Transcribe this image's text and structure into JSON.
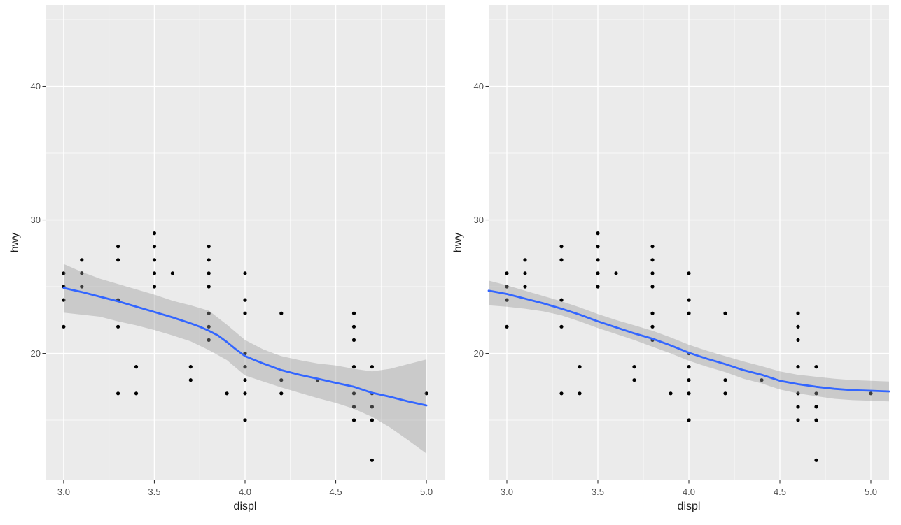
{
  "figure": {
    "kind": "side-by-side ggplot scatter plots with loess smooth and confidence ribbon",
    "background": "#FFFFFF",
    "panel_background": "#EBEBEB",
    "grid_color": "#FFFFFF",
    "point_color": "#000000",
    "smooth_line_color": "#3366FF",
    "ribbon_color": "#999999",
    "ribbon_opacity": 0.4,
    "tick_label_color": "#4D4D4D",
    "axis_title_color": "#1A1A1A",
    "tick_mark_color": "#333333"
  },
  "chart_data": [
    {
      "id": "left",
      "type": "scatter",
      "title": "",
      "xlabel": "displ",
      "ylabel": "hwy",
      "xlim": [
        2.9,
        5.1
      ],
      "ylim": [
        10.5,
        46.1
      ],
      "grid": true,
      "legend": "none",
      "x_tick_values": [
        3.0,
        3.5,
        4.0,
        4.5,
        5.0
      ],
      "x_tick_labels": [
        "3.0",
        "3.5",
        "4.0",
        "4.5",
        "5.0"
      ],
      "x_minor_ticks": [
        3.25,
        3.75,
        4.25,
        4.75
      ],
      "y_tick_values": [
        20,
        30,
        40
      ],
      "y_tick_labels": [
        "20",
        "30",
        "40"
      ],
      "y_minor_ticks": [
        15,
        25,
        35,
        45
      ],
      "points": [
        [
          3.0,
          26
        ],
        [
          3.0,
          25
        ],
        [
          3.0,
          24
        ],
        [
          3.0,
          22
        ],
        [
          3.1,
          27
        ],
        [
          3.1,
          26
        ],
        [
          3.1,
          25
        ],
        [
          3.3,
          28
        ],
        [
          3.3,
          27
        ],
        [
          3.3,
          24
        ],
        [
          3.3,
          22
        ],
        [
          3.3,
          17
        ],
        [
          3.4,
          19
        ],
        [
          3.4,
          17
        ],
        [
          3.5,
          29
        ],
        [
          3.5,
          28
        ],
        [
          3.5,
          27
        ],
        [
          3.5,
          26
        ],
        [
          3.5,
          25
        ],
        [
          3.6,
          26
        ],
        [
          3.7,
          19
        ],
        [
          3.7,
          18
        ],
        [
          3.8,
          28
        ],
        [
          3.8,
          27
        ],
        [
          3.8,
          26
        ],
        [
          3.8,
          25
        ],
        [
          3.8,
          23
        ],
        [
          3.8,
          22
        ],
        [
          3.8,
          21
        ],
        [
          3.9,
          17
        ],
        [
          4.0,
          26
        ],
        [
          4.0,
          24
        ],
        [
          4.0,
          23
        ],
        [
          4.0,
          20
        ],
        [
          4.0,
          19
        ],
        [
          4.0,
          18
        ],
        [
          4.0,
          17
        ],
        [
          4.0,
          15
        ],
        [
          4.2,
          23
        ],
        [
          4.2,
          18
        ],
        [
          4.2,
          17
        ],
        [
          4.4,
          18
        ],
        [
          4.6,
          23
        ],
        [
          4.6,
          22
        ],
        [
          4.6,
          21
        ],
        [
          4.6,
          19
        ],
        [
          4.6,
          17
        ],
        [
          4.6,
          16
        ],
        [
          4.6,
          15
        ],
        [
          4.7,
          19
        ],
        [
          4.7,
          17
        ],
        [
          4.7,
          16
        ],
        [
          4.7,
          15
        ],
        [
          4.7,
          12
        ],
        [
          5.0,
          17
        ]
      ],
      "smooth_line": [
        [
          3.0,
          24.9
        ],
        [
          3.1,
          24.6
        ],
        [
          3.2,
          24.25
        ],
        [
          3.3,
          23.9
        ],
        [
          3.4,
          23.5
        ],
        [
          3.5,
          23.1
        ],
        [
          3.6,
          22.7
        ],
        [
          3.7,
          22.25
        ],
        [
          3.75,
          22.0
        ],
        [
          3.8,
          21.7
        ],
        [
          3.85,
          21.35
        ],
        [
          3.9,
          20.85
        ],
        [
          3.95,
          20.3
        ],
        [
          4.0,
          19.8
        ],
        [
          4.1,
          19.25
        ],
        [
          4.2,
          18.75
        ],
        [
          4.3,
          18.4
        ],
        [
          4.4,
          18.1
        ],
        [
          4.5,
          17.8
        ],
        [
          4.6,
          17.5
        ],
        [
          4.7,
          17.05
        ],
        [
          4.8,
          16.75
        ],
        [
          4.9,
          16.4
        ],
        [
          5.0,
          16.1
        ]
      ],
      "ci_upper": [
        [
          3.0,
          26.7
        ],
        [
          3.1,
          26.1
        ],
        [
          3.2,
          25.6
        ],
        [
          3.3,
          25.2
        ],
        [
          3.4,
          24.8
        ],
        [
          3.5,
          24.4
        ],
        [
          3.6,
          23.95
        ],
        [
          3.7,
          23.6
        ],
        [
          3.8,
          23.2
        ],
        [
          3.9,
          22.15
        ],
        [
          4.0,
          21.0
        ],
        [
          4.1,
          20.3
        ],
        [
          4.2,
          19.8
        ],
        [
          4.3,
          19.5
        ],
        [
          4.4,
          19.25
        ],
        [
          4.5,
          19.1
        ],
        [
          4.6,
          18.85
        ],
        [
          4.7,
          18.65
        ],
        [
          4.8,
          18.85
        ],
        [
          4.9,
          19.2
        ],
        [
          5.0,
          19.55
        ]
      ],
      "ci_lower": [
        [
          3.0,
          23.05
        ],
        [
          3.1,
          22.9
        ],
        [
          3.2,
          22.75
        ],
        [
          3.3,
          22.4
        ],
        [
          3.4,
          22.1
        ],
        [
          3.5,
          21.75
        ],
        [
          3.6,
          21.35
        ],
        [
          3.7,
          20.9
        ],
        [
          3.8,
          20.25
        ],
        [
          3.9,
          19.5
        ],
        [
          4.0,
          18.35
        ],
        [
          4.1,
          17.9
        ],
        [
          4.2,
          17.45
        ],
        [
          4.3,
          17.05
        ],
        [
          4.4,
          16.65
        ],
        [
          4.5,
          16.3
        ],
        [
          4.6,
          15.85
        ],
        [
          4.7,
          15.25
        ],
        [
          4.8,
          14.45
        ],
        [
          4.9,
          13.5
        ],
        [
          5.0,
          12.5
        ]
      ]
    },
    {
      "id": "right",
      "type": "scatter",
      "title": "",
      "xlabel": "displ",
      "ylabel": "hwy",
      "xlim": [
        2.9,
        5.1
      ],
      "ylim": [
        10.5,
        46.1
      ],
      "grid": true,
      "legend": "none",
      "x_tick_values": [
        3.0,
        3.5,
        4.0,
        4.5,
        5.0
      ],
      "x_tick_labels": [
        "3.0",
        "3.5",
        "4.0",
        "4.5",
        "5.0"
      ],
      "x_minor_ticks": [
        3.25,
        3.75,
        4.25,
        4.75
      ],
      "y_tick_values": [
        20,
        30,
        40
      ],
      "y_tick_labels": [
        "20",
        "30",
        "40"
      ],
      "y_minor_ticks": [
        15,
        25,
        35,
        45
      ],
      "points": [
        [
          3.0,
          26
        ],
        [
          3.0,
          25
        ],
        [
          3.0,
          24
        ],
        [
          3.0,
          22
        ],
        [
          3.1,
          27
        ],
        [
          3.1,
          26
        ],
        [
          3.1,
          25
        ],
        [
          3.3,
          28
        ],
        [
          3.3,
          27
        ],
        [
          3.3,
          24
        ],
        [
          3.3,
          22
        ],
        [
          3.3,
          17
        ],
        [
          3.4,
          19
        ],
        [
          3.4,
          17
        ],
        [
          3.5,
          29
        ],
        [
          3.5,
          28
        ],
        [
          3.5,
          27
        ],
        [
          3.5,
          26
        ],
        [
          3.5,
          25
        ],
        [
          3.6,
          26
        ],
        [
          3.7,
          19
        ],
        [
          3.7,
          18
        ],
        [
          3.8,
          28
        ],
        [
          3.8,
          27
        ],
        [
          3.8,
          26
        ],
        [
          3.8,
          25
        ],
        [
          3.8,
          23
        ],
        [
          3.8,
          22
        ],
        [
          3.8,
          21
        ],
        [
          3.9,
          17
        ],
        [
          4.0,
          26
        ],
        [
          4.0,
          24
        ],
        [
          4.0,
          23
        ],
        [
          4.0,
          20
        ],
        [
          4.0,
          19
        ],
        [
          4.0,
          18
        ],
        [
          4.0,
          17
        ],
        [
          4.0,
          15
        ],
        [
          4.2,
          23
        ],
        [
          4.2,
          18
        ],
        [
          4.2,
          17
        ],
        [
          4.4,
          18
        ],
        [
          4.6,
          23
        ],
        [
          4.6,
          22
        ],
        [
          4.6,
          21
        ],
        [
          4.6,
          19
        ],
        [
          4.6,
          17
        ],
        [
          4.6,
          16
        ],
        [
          4.6,
          15
        ],
        [
          4.7,
          19
        ],
        [
          4.7,
          17
        ],
        [
          4.7,
          16
        ],
        [
          4.7,
          15
        ],
        [
          4.7,
          12
        ],
        [
          5.0,
          17
        ]
      ],
      "smooth_line": [
        [
          2.9,
          24.7
        ],
        [
          3.0,
          24.45
        ],
        [
          3.1,
          24.1
        ],
        [
          3.2,
          23.75
        ],
        [
          3.3,
          23.35
        ],
        [
          3.4,
          22.9
        ],
        [
          3.5,
          22.4
        ],
        [
          3.6,
          21.95
        ],
        [
          3.7,
          21.5
        ],
        [
          3.8,
          21.1
        ],
        [
          3.9,
          20.6
        ],
        [
          4.0,
          20.05
        ],
        [
          4.1,
          19.6
        ],
        [
          4.2,
          19.2
        ],
        [
          4.3,
          18.75
        ],
        [
          4.4,
          18.4
        ],
        [
          4.5,
          17.95
        ],
        [
          4.6,
          17.7
        ],
        [
          4.7,
          17.5
        ],
        [
          4.8,
          17.35
        ],
        [
          4.9,
          17.25
        ],
        [
          5.0,
          17.2
        ],
        [
          5.1,
          17.15
        ]
      ],
      "ci_upper": [
        [
          2.9,
          25.45
        ],
        [
          3.0,
          25.1
        ],
        [
          3.1,
          24.7
        ],
        [
          3.2,
          24.3
        ],
        [
          3.3,
          23.9
        ],
        [
          3.4,
          23.45
        ],
        [
          3.5,
          22.95
        ],
        [
          3.6,
          22.5
        ],
        [
          3.7,
          22.1
        ],
        [
          3.8,
          21.7
        ],
        [
          3.9,
          21.2
        ],
        [
          4.0,
          20.65
        ],
        [
          4.1,
          20.2
        ],
        [
          4.2,
          19.8
        ],
        [
          4.3,
          19.4
        ],
        [
          4.4,
          19.05
        ],
        [
          4.5,
          18.65
        ],
        [
          4.6,
          18.4
        ],
        [
          4.7,
          18.25
        ],
        [
          4.8,
          18.1
        ],
        [
          4.9,
          18.0
        ],
        [
          5.0,
          17.95
        ],
        [
          5.1,
          17.9
        ]
      ],
      "ci_lower": [
        [
          2.9,
          23.6
        ],
        [
          3.0,
          23.5
        ],
        [
          3.1,
          23.35
        ],
        [
          3.2,
          23.15
        ],
        [
          3.3,
          22.85
        ],
        [
          3.4,
          22.4
        ],
        [
          3.5,
          21.9
        ],
        [
          3.6,
          21.45
        ],
        [
          3.7,
          21.0
        ],
        [
          3.8,
          20.5
        ],
        [
          3.9,
          20.0
        ],
        [
          4.0,
          19.45
        ],
        [
          4.1,
          19.0
        ],
        [
          4.2,
          18.6
        ],
        [
          4.3,
          18.1
        ],
        [
          4.4,
          17.75
        ],
        [
          4.5,
          17.3
        ],
        [
          4.6,
          17.0
        ],
        [
          4.7,
          16.8
        ],
        [
          4.8,
          16.6
        ],
        [
          4.9,
          16.5
        ],
        [
          5.0,
          16.45
        ],
        [
          5.1,
          16.4
        ]
      ]
    }
  ]
}
